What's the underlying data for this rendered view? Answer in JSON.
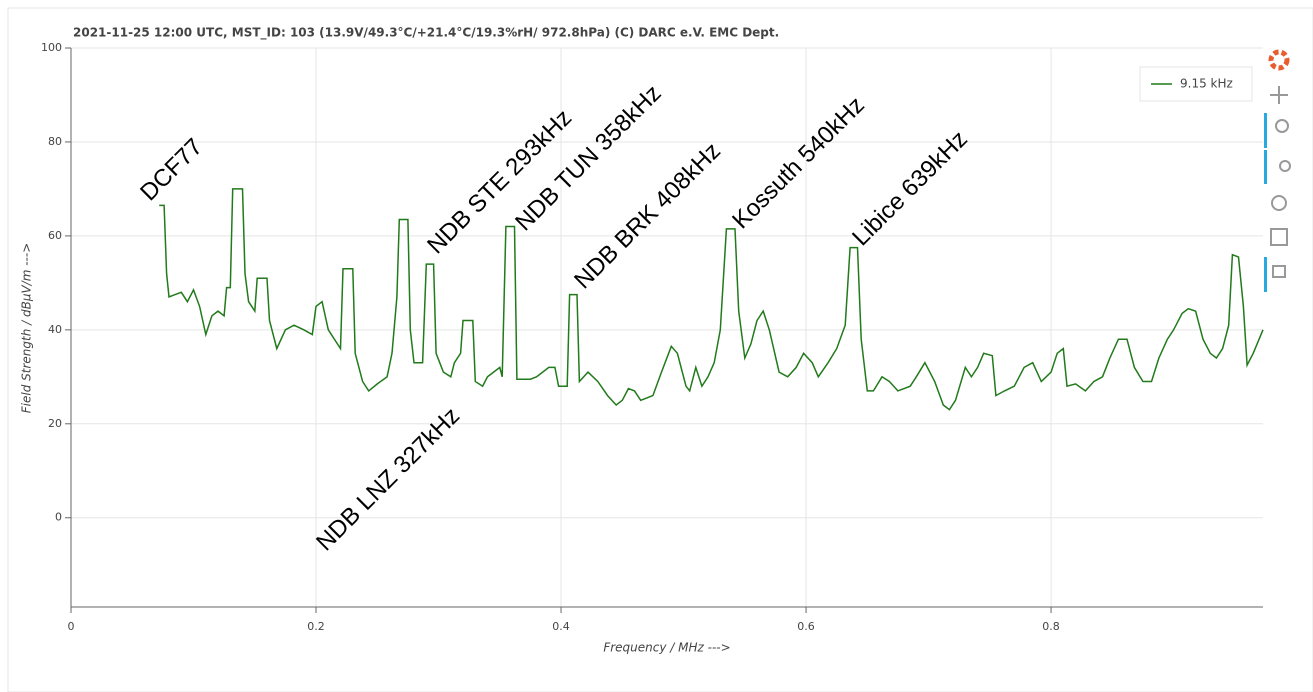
{
  "chart_data": {
    "type": "line",
    "title": "2021-11-25 12:00  UTC,  MST_ID:  103   (13.9V/49.3°C/+21.4°C/19.3%rH/ 972.8hPa)  (C) DARC e.V. EMC Dept.",
    "xlabel": "Frequency / MHz --->",
    "ylabel": "Field Strength / dBµV/m --->",
    "annotations": [
      "DCF77",
      "NDB STE 293kHz",
      "NDB TUN 358kHz",
      "NDB BRK 408kHz",
      "Kossuth 540kHz",
      "Libice 639kHz",
      "NDB LNZ 327kHz"
    ],
    "x": [
      0.072,
      0.076,
      0.078,
      0.08,
      0.085,
      0.09,
      0.095,
      0.1,
      0.105,
      0.11,
      0.115,
      0.12,
      0.125,
      0.127,
      0.13,
      0.132,
      0.14,
      0.142,
      0.145,
      0.15,
      0.152,
      0.16,
      0.162,
      0.168,
      0.175,
      0.182,
      0.19,
      0.197,
      0.2,
      0.205,
      0.21,
      0.22,
      0.222,
      0.23,
      0.232,
      0.238,
      0.243,
      0.25,
      0.258,
      0.262,
      0.266,
      0.268,
      0.275,
      0.277,
      0.28,
      0.287,
      0.29,
      0.296,
      0.298,
      0.304,
      0.31,
      0.313,
      0.318,
      0.32,
      0.328,
      0.33,
      0.336,
      0.34,
      0.35,
      0.352,
      0.355,
      0.362,
      0.364,
      0.375,
      0.38,
      0.385,
      0.39,
      0.395,
      0.398,
      0.405,
      0.407,
      0.413,
      0.415,
      0.422,
      0.43,
      0.438,
      0.445,
      0.45,
      0.455,
      0.46,
      0.465,
      0.475,
      0.482,
      0.49,
      0.495,
      0.502,
      0.505,
      0.51,
      0.515,
      0.52,
      0.525,
      0.53,
      0.535,
      0.542,
      0.545,
      0.55,
      0.555,
      0.56,
      0.565,
      0.57,
      0.578,
      0.585,
      0.592,
      0.598,
      0.605,
      0.61,
      0.618,
      0.625,
      0.632,
      0.636,
      0.642,
      0.645,
      0.65,
      0.655,
      0.662,
      0.668,
      0.675,
      0.685,
      0.69,
      0.697,
      0.705,
      0.712,
      0.717,
      0.722,
      0.73,
      0.735,
      0.74,
      0.745,
      0.752,
      0.755,
      0.762,
      0.77,
      0.778,
      0.785,
      0.792,
      0.8,
      0.805,
      0.81,
      0.813,
      0.82,
      0.828,
      0.835,
      0.842,
      0.848,
      0.855,
      0.862,
      0.868,
      0.875,
      0.882,
      0.888,
      0.895,
      0.9,
      0.907,
      0.912,
      0.918,
      0.924,
      0.93,
      0.935,
      0.94,
      0.945,
      0.948,
      0.953,
      0.957,
      0.96,
      0.965,
      0.973
    ],
    "series": [
      {
        "name": "9.15 kHz",
        "color": "#217a1b",
        "values": [
          66.5,
          66.5,
          52,
          47,
          47.5,
          48,
          46,
          48.5,
          45,
          39,
          43,
          44,
          43,
          49,
          49,
          70,
          70,
          52,
          46,
          44,
          51,
          51,
          42,
          36,
          40,
          41,
          40,
          39,
          45,
          46,
          40,
          36,
          53,
          53,
          35,
          29,
          27,
          28.5,
          30,
          35,
          47,
          63.5,
          63.5,
          40,
          33,
          33,
          54,
          54,
          35,
          31,
          30,
          33,
          35,
          42,
          42,
          29,
          28,
          30,
          32,
          30,
          62,
          62,
          29.5,
          29.5,
          30,
          31,
          32,
          32,
          28,
          28,
          47.5,
          47.5,
          29,
          31,
          29,
          26,
          24,
          25,
          27.5,
          27,
          25,
          26,
          31,
          36.5,
          35,
          28,
          27,
          32,
          28,
          30,
          33,
          40,
          61.5,
          61.5,
          44,
          34,
          37,
          42,
          44,
          40,
          31,
          30,
          32,
          35,
          33,
          30,
          33,
          36,
          41,
          57.5,
          57.5,
          38,
          27,
          27,
          30,
          29,
          27,
          28,
          30,
          33,
          29,
          24,
          23,
          25,
          32,
          30,
          32,
          35,
          34.5,
          26,
          27,
          28,
          32,
          33,
          29,
          31,
          35,
          36,
          28,
          28.5,
          27,
          29,
          30,
          34,
          38,
          38,
          32,
          29,
          29,
          34,
          38,
          40,
          43.5,
          44.5,
          44,
          38,
          35,
          34,
          36,
          41,
          56,
          55.5,
          45,
          32.5,
          35,
          40
        ]
      }
    ],
    "xlim": [
      0,
      0.973
    ],
    "ylim": [
      -19,
      100
    ],
    "xticks": [
      0,
      0.2,
      0.4,
      0.6,
      0.8
    ],
    "yticks": [
      0,
      20,
      40,
      60,
      80,
      100
    ],
    "grid": true,
    "legend": "top-right"
  }
}
